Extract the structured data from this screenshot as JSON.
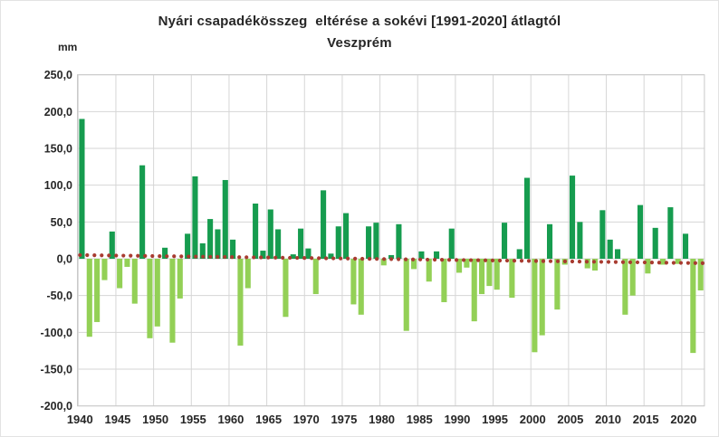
{
  "header": {
    "title_line1": "Nyári csapadékösszeg  eltérése a sokévi [1991-2020] átlagtól",
    "title_line2": "Veszprém",
    "unit_label": "mm"
  },
  "chart_data": {
    "type": "bar",
    "title": "Nyári csapadékösszeg eltérése a sokévi [1991-2020] átlagtól",
    "subtitle": "Veszprém",
    "ylabel": "mm",
    "ylim": [
      -200,
      250
    ],
    "grid_step": 50,
    "grid": "on",
    "legend": "none",
    "y_tick_labels": [
      "250,0",
      "200,0",
      "150,0",
      "100,0",
      "50,0",
      "0,0",
      "-50,0",
      "-100,0",
      "-150,0",
      "-200,0"
    ],
    "x_tick_labels": [
      "1940",
      "1945",
      "1950",
      "1955",
      "1960",
      "1965",
      "1970",
      "1975",
      "1980",
      "1985",
      "1990",
      "1995",
      "2000",
      "2005",
      "2010",
      "2015",
      "2020"
    ],
    "series": [
      {
        "year": 1940,
        "value": 190
      },
      {
        "year": 1941,
        "value": -106
      },
      {
        "year": 1942,
        "value": -86
      },
      {
        "year": 1943,
        "value": -29
      },
      {
        "year": 1944,
        "value": 37
      },
      {
        "year": 1945,
        "value": -40
      },
      {
        "year": 1946,
        "value": -11
      },
      {
        "year": 1947,
        "value": -61
      },
      {
        "year": 1948,
        "value": 127
      },
      {
        "year": 1949,
        "value": -108
      },
      {
        "year": 1950,
        "value": -92
      },
      {
        "year": 1951,
        "value": 15
      },
      {
        "year": 1952,
        "value": -114
      },
      {
        "year": 1953,
        "value": -54
      },
      {
        "year": 1954,
        "value": 34
      },
      {
        "year": 1955,
        "value": 112
      },
      {
        "year": 1956,
        "value": 21
      },
      {
        "year": 1957,
        "value": 54
      },
      {
        "year": 1958,
        "value": 40
      },
      {
        "year": 1959,
        "value": 107
      },
      {
        "year": 1960,
        "value": 26
      },
      {
        "year": 1961,
        "value": -118
      },
      {
        "year": 1962,
        "value": -40
      },
      {
        "year": 1963,
        "value": 75
      },
      {
        "year": 1964,
        "value": 11
      },
      {
        "year": 1965,
        "value": 67
      },
      {
        "year": 1966,
        "value": 40
      },
      {
        "year": 1967,
        "value": -79
      },
      {
        "year": 1968,
        "value": 6
      },
      {
        "year": 1969,
        "value": 41
      },
      {
        "year": 1970,
        "value": 14
      },
      {
        "year": 1971,
        "value": -48
      },
      {
        "year": 1972,
        "value": 93
      },
      {
        "year": 1973,
        "value": 7
      },
      {
        "year": 1974,
        "value": 44
      },
      {
        "year": 1975,
        "value": 62
      },
      {
        "year": 1976,
        "value": -62
      },
      {
        "year": 1977,
        "value": -76
      },
      {
        "year": 1978,
        "value": 44
      },
      {
        "year": 1979,
        "value": 49
      },
      {
        "year": 1980,
        "value": -9
      },
      {
        "year": 1981,
        "value": 5
      },
      {
        "year": 1982,
        "value": 47
      },
      {
        "year": 1983,
        "value": -98
      },
      {
        "year": 1984,
        "value": -14
      },
      {
        "year": 1985,
        "value": 10
      },
      {
        "year": 1986,
        "value": -31
      },
      {
        "year": 1987,
        "value": 10
      },
      {
        "year": 1988,
        "value": -59
      },
      {
        "year": 1989,
        "value": 41
      },
      {
        "year": 1990,
        "value": -19
      },
      {
        "year": 1991,
        "value": -12
      },
      {
        "year": 1992,
        "value": -85
      },
      {
        "year": 1993,
        "value": -48
      },
      {
        "year": 1994,
        "value": -37
      },
      {
        "year": 1995,
        "value": -42
      },
      {
        "year": 1996,
        "value": 49
      },
      {
        "year": 1997,
        "value": -53
      },
      {
        "year": 1998,
        "value": 13
      },
      {
        "year": 1999,
        "value": 110
      },
      {
        "year": 2000,
        "value": -127
      },
      {
        "year": 2001,
        "value": -104
      },
      {
        "year": 2002,
        "value": 47
      },
      {
        "year": 2003,
        "value": -69
      },
      {
        "year": 2004,
        "value": -8
      },
      {
        "year": 2005,
        "value": 113
      },
      {
        "year": 2006,
        "value": 50
      },
      {
        "year": 2007,
        "value": -13
      },
      {
        "year": 2008,
        "value": -16
      },
      {
        "year": 2009,
        "value": 66
      },
      {
        "year": 2010,
        "value": 26
      },
      {
        "year": 2011,
        "value": 13
      },
      {
        "year": 2012,
        "value": -76
      },
      {
        "year": 2013,
        "value": -50
      },
      {
        "year": 2014,
        "value": 73
      },
      {
        "year": 2015,
        "value": -20
      },
      {
        "year": 2016,
        "value": 42
      },
      {
        "year": 2017,
        "value": -8
      },
      {
        "year": 2018,
        "value": 70
      },
      {
        "year": 2019,
        "value": -7
      },
      {
        "year": 2020,
        "value": 34
      },
      {
        "year": 2021,
        "value": -128
      },
      {
        "year": 2022,
        "value": -43
      }
    ],
    "trend_line": {
      "style": "dotted",
      "color": "#a83b30",
      "start_value": 5,
      "end_value": -6
    },
    "colors": {
      "positive_bar": "#169c4f",
      "negative_bar": "#93d056",
      "gridline": "#d6d6d6",
      "plot_border": "#c9c9c9",
      "text": "#262626"
    }
  }
}
